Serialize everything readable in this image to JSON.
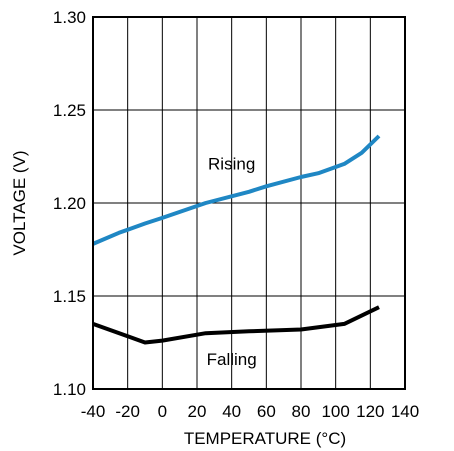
{
  "chart_data": {
    "type": "line",
    "title": "",
    "xlabel": "TEMPERATURE (°C)",
    "ylabel": "VOLTAGE (V)",
    "xlim": [
      -40,
      140
    ],
    "ylim": [
      1.1,
      1.3
    ],
    "xticks": [
      -40,
      -20,
      0,
      20,
      40,
      60,
      80,
      100,
      120,
      140
    ],
    "yticks": [
      1.1,
      1.15,
      1.2,
      1.25,
      1.3
    ],
    "ytick_labels": [
      "1.10",
      "1.15",
      "1.20",
      "1.25",
      "1.30"
    ],
    "grid": true,
    "series": [
      {
        "name": "Rising",
        "color": "#1f87c4",
        "x": [
          -40,
          -25,
          -10,
          0,
          25,
          50,
          60,
          80,
          90,
          105,
          115,
          125
        ],
        "y": [
          1.178,
          1.184,
          1.189,
          1.192,
          1.2,
          1.206,
          1.209,
          1.214,
          1.216,
          1.221,
          1.227,
          1.236
        ]
      },
      {
        "name": "Falling",
        "color": "#000000",
        "x": [
          -40,
          -10,
          0,
          25,
          50,
          80,
          105,
          125
        ],
        "y": [
          1.135,
          1.125,
          1.126,
          1.13,
          1.131,
          1.132,
          1.135,
          1.144
        ]
      }
    ],
    "annotations": [
      {
        "text": "Rising",
        "x": 40,
        "y": 1.218
      },
      {
        "text": "Falling",
        "x": 40,
        "y": 1.113
      }
    ]
  }
}
